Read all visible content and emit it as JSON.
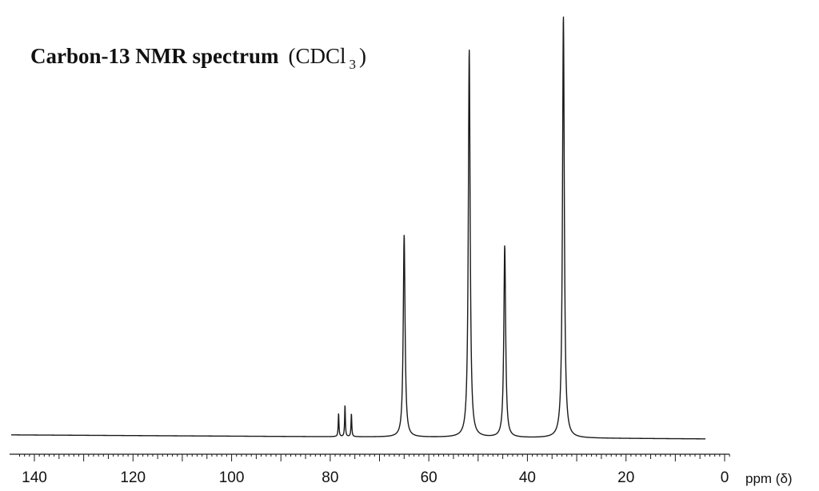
{
  "chart_data": {
    "type": "line",
    "title": {
      "main": "Carbon-13 NMR spectrum",
      "solvent_prefix": "(CDCl",
      "solvent_subscript": "3",
      "solvent_suffix": ")"
    },
    "xlabel": "ppm (δ)",
    "x_reversed": true,
    "xlim": [
      0,
      140
    ],
    "x_major_ticks": [
      "140",
      "120",
      "100",
      "80",
      "60",
      "40",
      "20",
      "0"
    ],
    "peaks_ppm": [
      78.3,
      77.0,
      75.7,
      65.0,
      51.8,
      44.6,
      32.7
    ],
    "peak_relative_heights": [
      0.055,
      0.075,
      0.055,
      0.48,
      0.92,
      0.455,
      1.0
    ],
    "grid": false,
    "legend": "none"
  }
}
